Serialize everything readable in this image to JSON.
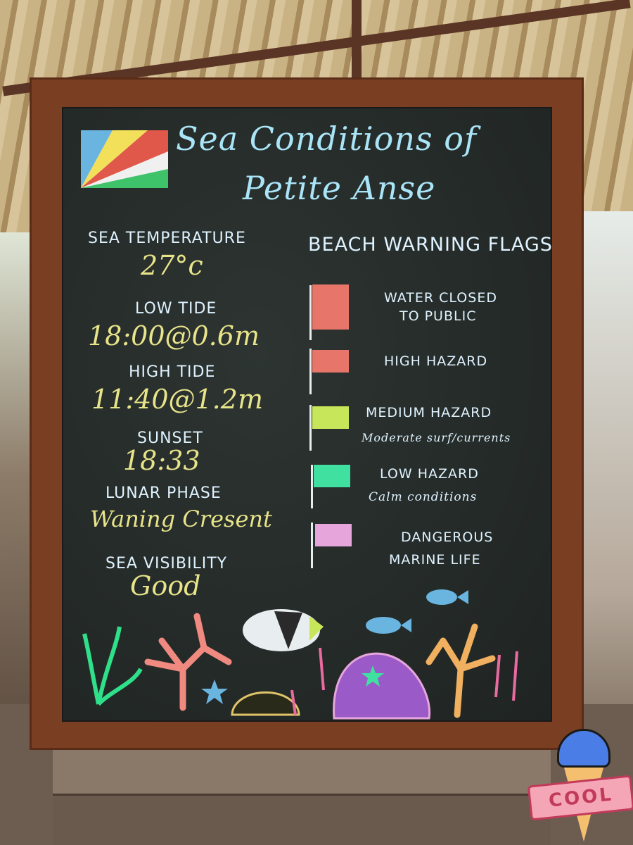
{
  "board": {
    "title_line1": "Sea Conditions of",
    "title_line2": "Petite Anse",
    "left": [
      {
        "label": "SEA TEMPERATURE",
        "value": "27°c"
      },
      {
        "label": "LOW TIDE",
        "value": "18:00@0.6m"
      },
      {
        "label": "HIGH TIDE",
        "value": "11:40@1.2m"
      },
      {
        "label": "SUNSET",
        "value": "18:33"
      },
      {
        "label": "LUNAR PHASE",
        "value": "Waning Cresent"
      },
      {
        "label": "SEA VISIBILITY",
        "value": "Good"
      }
    ],
    "flags_heading": "BEACH WARNING FLAGS",
    "flags": [
      {
        "line1": "WATER CLOSED",
        "line2": "TO PUBLIC",
        "color": "#e8756a"
      },
      {
        "line1": "HIGH HAZARD",
        "line2": "",
        "color": "#e8756a"
      },
      {
        "line1": "MEDIUM HAZARD",
        "line2": "Moderate surf/currents",
        "color": "#c8e65a"
      },
      {
        "line1": "LOW HAZARD",
        "line2": "Calm conditions",
        "color": "#3fe0a0"
      },
      {
        "line1": "DANGEROUS",
        "line2": "MARINE LIFE",
        "color": "#e6a6dc"
      }
    ]
  },
  "sticker": {
    "text": "COOL"
  }
}
